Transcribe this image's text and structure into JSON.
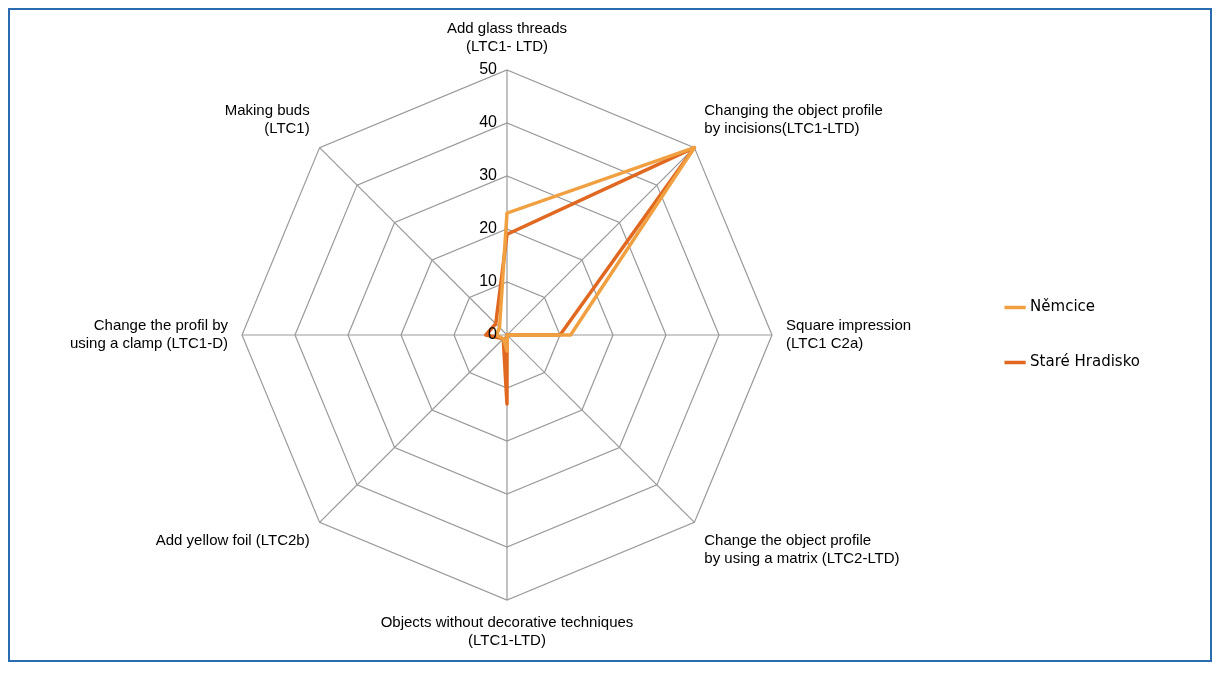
{
  "chart_data": {
    "type": "radar",
    "categories": [
      "Add glass threads\n(LTC1- LTD)",
      "Changing the object profile\nby incisions(LTC1-LTD)",
      "Square impression\n(LTC1 C2a)",
      "Change the object profile\nby using a matrix (LTC2-LTD)",
      "Objects without decorative techniques\n(LTC1-LTD)",
      "Add yellow foil (LTC2b)",
      "Change the profil by\nusing a clamp (LTC1-D)",
      "Making buds\n(LTC1)"
    ],
    "series": [
      {
        "name": "Němcice",
        "color": "#f0a040",
        "values": [
          23,
          50,
          12,
          0,
          3,
          1,
          2,
          2
        ]
      },
      {
        "name": "Staré Hradisko",
        "color": "#e06820",
        "values": [
          19,
          50,
          10,
          0,
          13,
          1,
          4,
          3
        ]
      }
    ],
    "ylim": [
      0,
      50
    ],
    "yticks": [
      0,
      10,
      20,
      30,
      40,
      50
    ],
    "grid": true,
    "legend": "right",
    "marker": "none"
  }
}
